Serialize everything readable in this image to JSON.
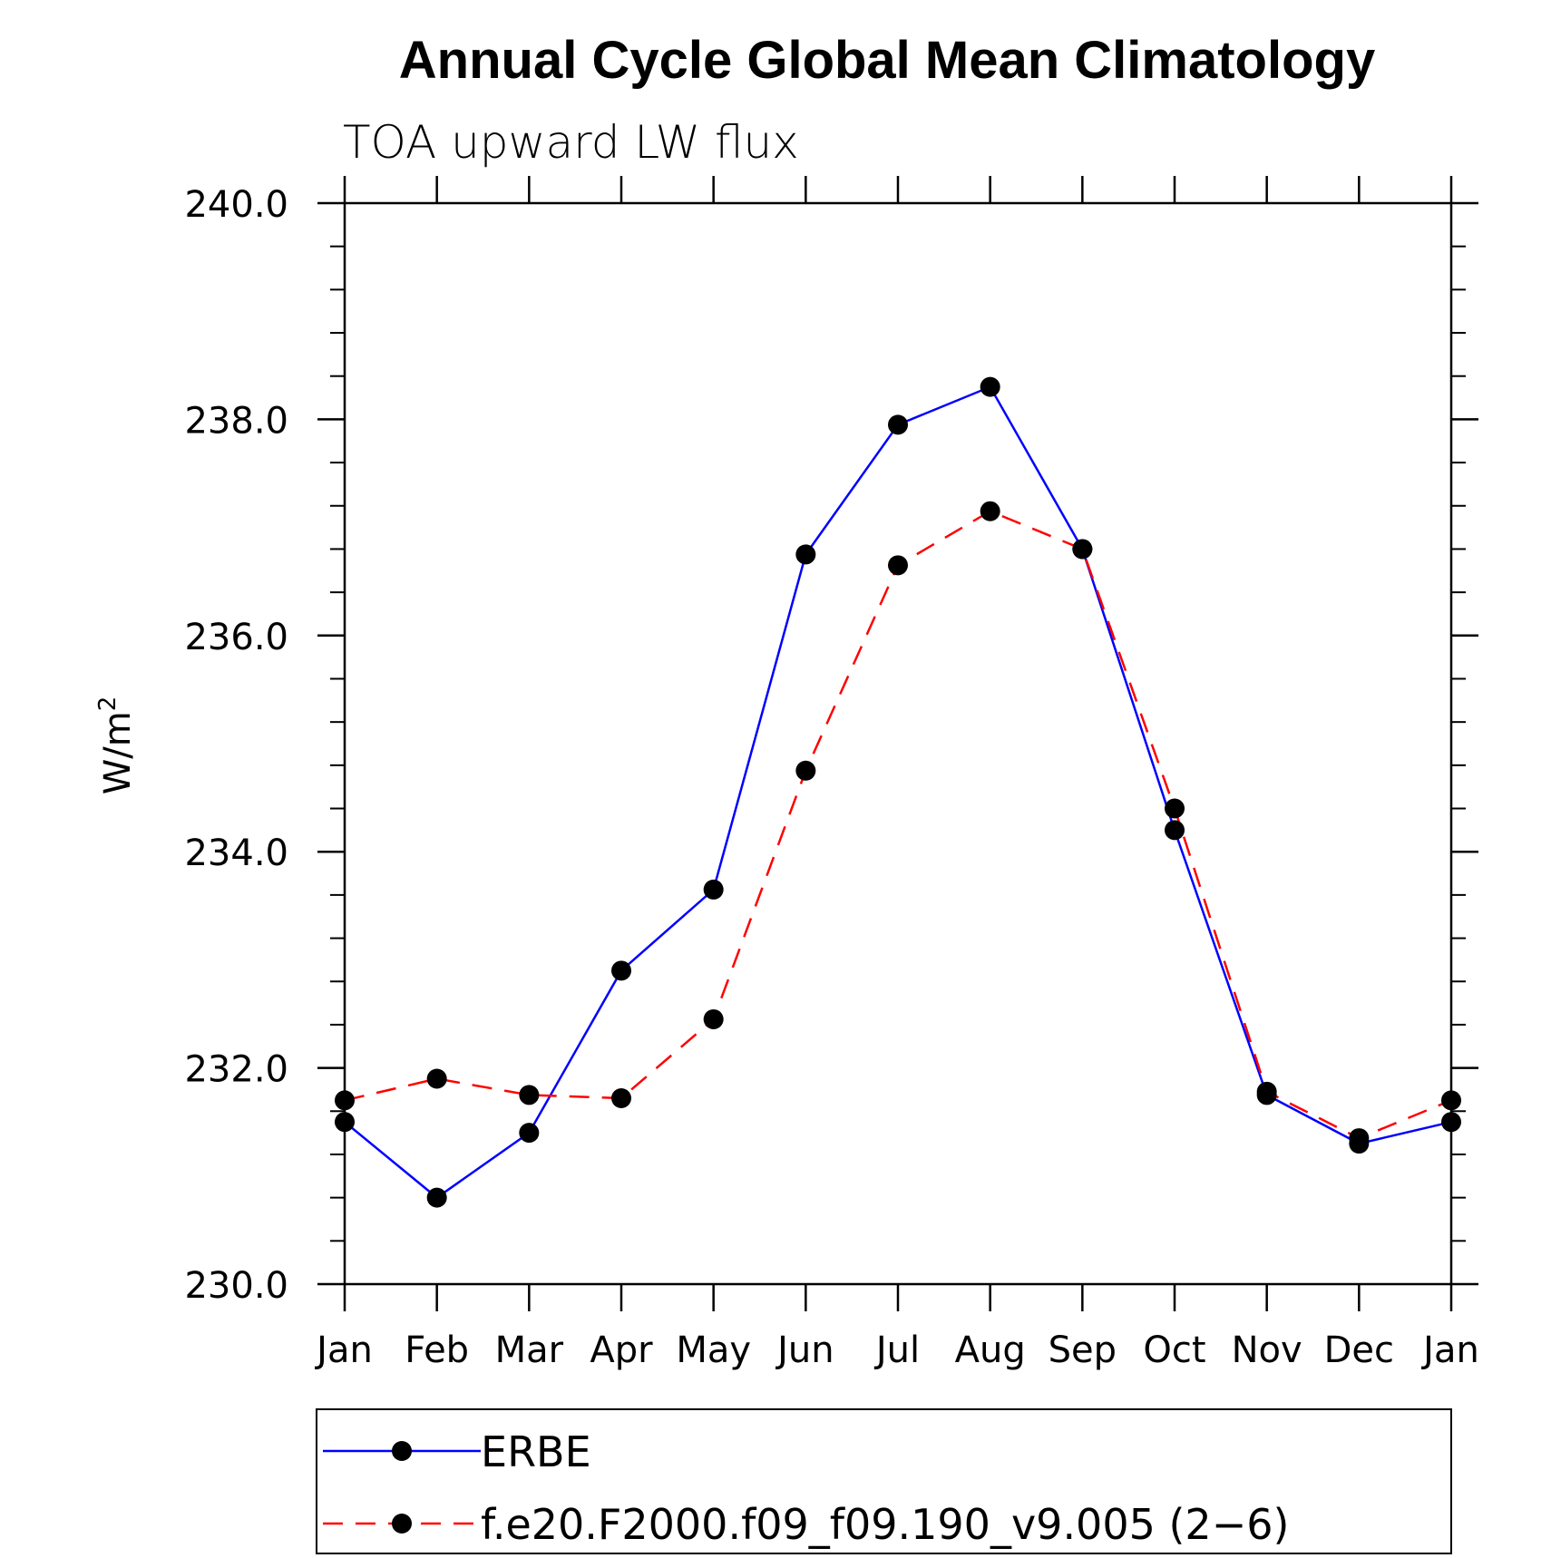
{
  "chart_data": {
    "type": "line",
    "title": "Annual Cycle Global Mean Climatology",
    "subtitle": "TOA upward LW flux",
    "ylabel": "W/m",
    "ylabel_sup": "2",
    "xlabel": "",
    "categories": [
      "Jan",
      "Feb",
      "Mar",
      "Apr",
      "May",
      "Jun",
      "Jul",
      "Aug",
      "Sep",
      "Oct",
      "Nov",
      "Dec",
      "Jan"
    ],
    "ylim": [
      230.0,
      240.0
    ],
    "yticks": [
      "230.0",
      "232.0",
      "234.0",
      "236.0",
      "238.0",
      "240.0"
    ],
    "legend_position": "bottom",
    "series": [
      {
        "name": "ERBE",
        "color": "#0000ff",
        "style": "solid",
        "values": [
          231.5,
          230.8,
          231.4,
          232.9,
          233.65,
          236.75,
          237.95,
          238.3,
          236.8,
          234.2,
          231.75,
          231.3,
          231.5
        ]
      },
      {
        "name": "f.e20.F2000.f09_f09.190_v9.005 (2−6)",
        "color": "#ff0000",
        "style": "dashed",
        "values": [
          231.7,
          231.9,
          231.75,
          231.72,
          232.45,
          234.75,
          236.65,
          237.15,
          236.8,
          234.4,
          231.78,
          231.35,
          231.7
        ]
      }
    ]
  }
}
